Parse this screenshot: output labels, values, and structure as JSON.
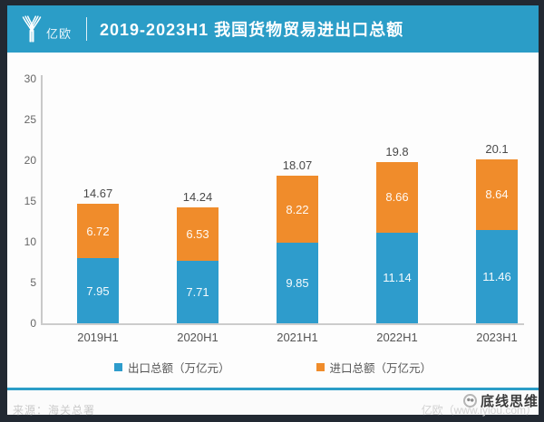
{
  "header": {
    "logo_text": "亿欧",
    "title": "2019-2023H1 我国货物贸易进出口总额"
  },
  "chart_data": {
    "type": "bar",
    "stacked": true,
    "title": "2019-2023H1 我国货物贸易进出口总额",
    "categories": [
      "2019H1",
      "2020H1",
      "2021H1",
      "2022H1",
      "2023H1"
    ],
    "series": [
      {
        "name": "出口总额（万亿元）",
        "color": "#2E9CCC",
        "values": [
          7.95,
          7.71,
          9.85,
          11.14,
          11.46
        ]
      },
      {
        "name": "进口总额（万亿元）",
        "color": "#F08C2B",
        "values": [
          6.72,
          6.53,
          8.22,
          8.66,
          8.64
        ]
      }
    ],
    "totals": [
      "14.67",
      "14.24",
      "18.07",
      "19.8",
      "20.1"
    ],
    "ylim": [
      0,
      30
    ],
    "yticks": [
      0,
      5,
      10,
      15,
      20,
      25,
      30
    ],
    "grid": false,
    "legend_position": "bottom",
    "unit": "万亿元"
  },
  "footer": {
    "source": "来源：海关总署",
    "credit": "亿欧（www.iyiou.com）",
    "watermark": "底线思维"
  },
  "colors": {
    "header_bg": "#2B9DC7",
    "accent_line": "#2B9DC7",
    "frame": "#222932",
    "export_blue": "#2E9CCC",
    "import_orange": "#F08C2B"
  }
}
